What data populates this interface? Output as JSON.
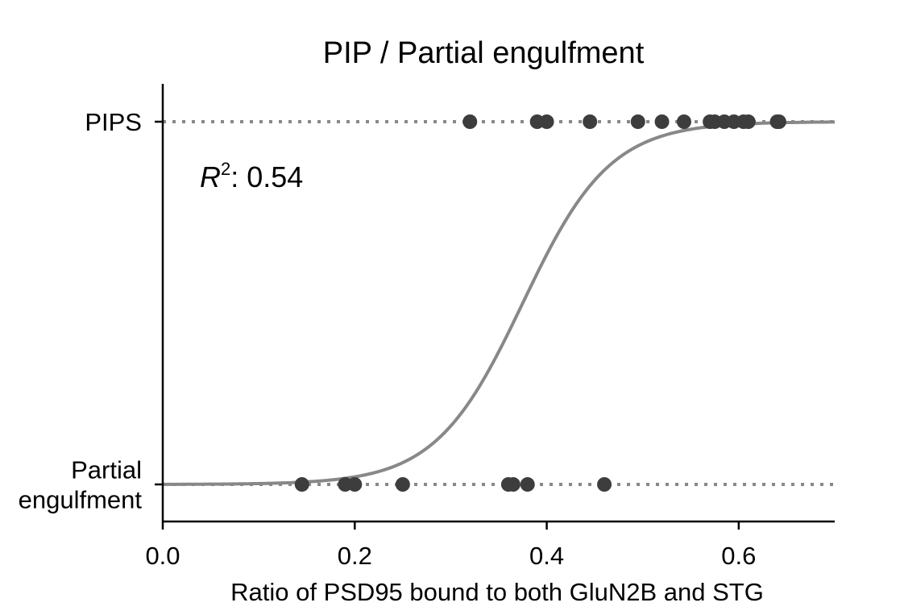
{
  "chart_data": {
    "type": "scatter",
    "title": "PIP / Partial engulfment",
    "xlabel": "Ratio of PSD95 bound to both GluN2B and STG",
    "ylabel": "",
    "xlim": [
      0.0,
      0.7
    ],
    "ylim": [
      -0.1,
      1.0
    ],
    "xticks": [
      "0.0",
      "0.2",
      "0.4",
      "0.6"
    ],
    "xtick_values": [
      0.0,
      0.2,
      0.4,
      0.6
    ],
    "yticks": [
      {
        "value": 1,
        "lines": [
          "PIPS"
        ]
      },
      {
        "value": 0,
        "lines": [
          "Partial",
          "engulfment"
        ]
      }
    ],
    "annotation": {
      "symbol": "R",
      "superscript": "2",
      "text": ": 0.54"
    },
    "grid": false,
    "legend": "none",
    "colors": {
      "points": "#3d3d3d",
      "curve": "#888888",
      "reference_lines": "#888888",
      "axes": "#000000"
    },
    "series": [
      {
        "kind": "points",
        "points": [
          [
            0.32,
            1
          ],
          [
            0.39,
            1
          ],
          [
            0.4,
            1
          ],
          [
            0.445,
            1
          ],
          [
            0.495,
            1
          ],
          [
            0.52,
            1
          ],
          [
            0.543,
            1
          ],
          [
            0.57,
            1
          ],
          [
            0.575,
            1
          ],
          [
            0.585,
            1
          ],
          [
            0.595,
            1
          ],
          [
            0.605,
            1
          ],
          [
            0.61,
            1
          ],
          [
            0.64,
            1
          ],
          [
            0.642,
            1
          ],
          [
            0.145,
            0
          ],
          [
            0.19,
            0
          ],
          [
            0.2,
            0
          ],
          [
            0.25,
            0
          ],
          [
            0.36,
            0
          ],
          [
            0.365,
            0
          ],
          [
            0.38,
            0
          ],
          [
            0.46,
            0
          ]
        ]
      },
      {
        "kind": "logistic_fit",
        "midpoint": 0.375,
        "steepness": 22,
        "x_range": [
          0.0,
          0.7
        ]
      }
    ]
  }
}
